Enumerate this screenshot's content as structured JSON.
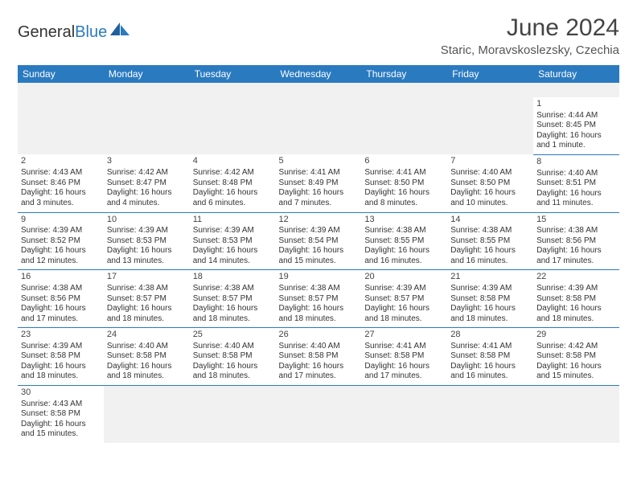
{
  "brand": {
    "part1": "General",
    "part2": "Blue"
  },
  "title": "June 2024",
  "location": "Staric, Moravskoslezsky, Czechia",
  "colors": {
    "header_bg": "#2a7ac0",
    "header_text": "#ffffff",
    "cell_border": "#2a7ac0",
    "blank_bg": "#f1f1f1",
    "text": "#333333"
  },
  "day_headers": [
    "Sunday",
    "Monday",
    "Tuesday",
    "Wednesday",
    "Thursday",
    "Friday",
    "Saturday"
  ],
  "weeks": [
    [
      null,
      null,
      null,
      null,
      null,
      null,
      {
        "d": "1",
        "sr": "Sunrise: 4:44 AM",
        "ss": "Sunset: 8:45 PM",
        "dl": "Daylight: 16 hours and 1 minute."
      }
    ],
    [
      {
        "d": "2",
        "sr": "Sunrise: 4:43 AM",
        "ss": "Sunset: 8:46 PM",
        "dl": "Daylight: 16 hours and 3 minutes."
      },
      {
        "d": "3",
        "sr": "Sunrise: 4:42 AM",
        "ss": "Sunset: 8:47 PM",
        "dl": "Daylight: 16 hours and 4 minutes."
      },
      {
        "d": "4",
        "sr": "Sunrise: 4:42 AM",
        "ss": "Sunset: 8:48 PM",
        "dl": "Daylight: 16 hours and 6 minutes."
      },
      {
        "d": "5",
        "sr": "Sunrise: 4:41 AM",
        "ss": "Sunset: 8:49 PM",
        "dl": "Daylight: 16 hours and 7 minutes."
      },
      {
        "d": "6",
        "sr": "Sunrise: 4:41 AM",
        "ss": "Sunset: 8:50 PM",
        "dl": "Daylight: 16 hours and 8 minutes."
      },
      {
        "d": "7",
        "sr": "Sunrise: 4:40 AM",
        "ss": "Sunset: 8:50 PM",
        "dl": "Daylight: 16 hours and 10 minutes."
      },
      {
        "d": "8",
        "sr": "Sunrise: 4:40 AM",
        "ss": "Sunset: 8:51 PM",
        "dl": "Daylight: 16 hours and 11 minutes."
      }
    ],
    [
      {
        "d": "9",
        "sr": "Sunrise: 4:39 AM",
        "ss": "Sunset: 8:52 PM",
        "dl": "Daylight: 16 hours and 12 minutes."
      },
      {
        "d": "10",
        "sr": "Sunrise: 4:39 AM",
        "ss": "Sunset: 8:53 PM",
        "dl": "Daylight: 16 hours and 13 minutes."
      },
      {
        "d": "11",
        "sr": "Sunrise: 4:39 AM",
        "ss": "Sunset: 8:53 PM",
        "dl": "Daylight: 16 hours and 14 minutes."
      },
      {
        "d": "12",
        "sr": "Sunrise: 4:39 AM",
        "ss": "Sunset: 8:54 PM",
        "dl": "Daylight: 16 hours and 15 minutes."
      },
      {
        "d": "13",
        "sr": "Sunrise: 4:38 AM",
        "ss": "Sunset: 8:55 PM",
        "dl": "Daylight: 16 hours and 16 minutes."
      },
      {
        "d": "14",
        "sr": "Sunrise: 4:38 AM",
        "ss": "Sunset: 8:55 PM",
        "dl": "Daylight: 16 hours and 16 minutes."
      },
      {
        "d": "15",
        "sr": "Sunrise: 4:38 AM",
        "ss": "Sunset: 8:56 PM",
        "dl": "Daylight: 16 hours and 17 minutes."
      }
    ],
    [
      {
        "d": "16",
        "sr": "Sunrise: 4:38 AM",
        "ss": "Sunset: 8:56 PM",
        "dl": "Daylight: 16 hours and 17 minutes."
      },
      {
        "d": "17",
        "sr": "Sunrise: 4:38 AM",
        "ss": "Sunset: 8:57 PM",
        "dl": "Daylight: 16 hours and 18 minutes."
      },
      {
        "d": "18",
        "sr": "Sunrise: 4:38 AM",
        "ss": "Sunset: 8:57 PM",
        "dl": "Daylight: 16 hours and 18 minutes."
      },
      {
        "d": "19",
        "sr": "Sunrise: 4:38 AM",
        "ss": "Sunset: 8:57 PM",
        "dl": "Daylight: 16 hours and 18 minutes."
      },
      {
        "d": "20",
        "sr": "Sunrise: 4:39 AM",
        "ss": "Sunset: 8:57 PM",
        "dl": "Daylight: 16 hours and 18 minutes."
      },
      {
        "d": "21",
        "sr": "Sunrise: 4:39 AM",
        "ss": "Sunset: 8:58 PM",
        "dl": "Daylight: 16 hours and 18 minutes."
      },
      {
        "d": "22",
        "sr": "Sunrise: 4:39 AM",
        "ss": "Sunset: 8:58 PM",
        "dl": "Daylight: 16 hours and 18 minutes."
      }
    ],
    [
      {
        "d": "23",
        "sr": "Sunrise: 4:39 AM",
        "ss": "Sunset: 8:58 PM",
        "dl": "Daylight: 16 hours and 18 minutes."
      },
      {
        "d": "24",
        "sr": "Sunrise: 4:40 AM",
        "ss": "Sunset: 8:58 PM",
        "dl": "Daylight: 16 hours and 18 minutes."
      },
      {
        "d": "25",
        "sr": "Sunrise: 4:40 AM",
        "ss": "Sunset: 8:58 PM",
        "dl": "Daylight: 16 hours and 18 minutes."
      },
      {
        "d": "26",
        "sr": "Sunrise: 4:40 AM",
        "ss": "Sunset: 8:58 PM",
        "dl": "Daylight: 16 hours and 17 minutes."
      },
      {
        "d": "27",
        "sr": "Sunrise: 4:41 AM",
        "ss": "Sunset: 8:58 PM",
        "dl": "Daylight: 16 hours and 17 minutes."
      },
      {
        "d": "28",
        "sr": "Sunrise: 4:41 AM",
        "ss": "Sunset: 8:58 PM",
        "dl": "Daylight: 16 hours and 16 minutes."
      },
      {
        "d": "29",
        "sr": "Sunrise: 4:42 AM",
        "ss": "Sunset: 8:58 PM",
        "dl": "Daylight: 16 hours and 15 minutes."
      }
    ],
    [
      {
        "d": "30",
        "sr": "Sunrise: 4:43 AM",
        "ss": "Sunset: 8:58 PM",
        "dl": "Daylight: 16 hours and 15 minutes."
      },
      null,
      null,
      null,
      null,
      null,
      null
    ]
  ]
}
